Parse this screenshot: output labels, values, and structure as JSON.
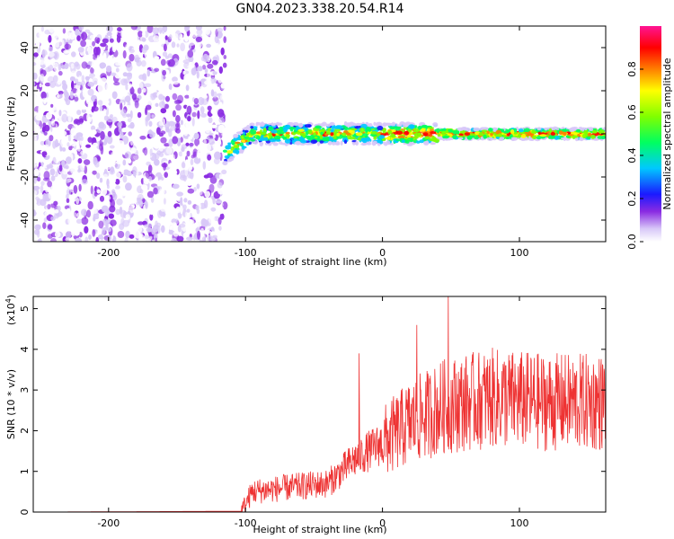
{
  "figure_title": "GN04.2023.338.20.54.R14",
  "chart_data": [
    {
      "type": "heatmap",
      "xlabel": "Height of straight line (km)",
      "ylabel": "Frequency (Hz)",
      "xlim": [
        -255,
        163
      ],
      "ylim": [
        -50,
        50
      ],
      "xticks": [
        -200,
        -100,
        0,
        100
      ],
      "yticks": [
        -40,
        -20,
        0,
        20,
        40
      ],
      "colorbar": {
        "label": "Normalized spectral amplitude",
        "range": [
          0.0,
          1.0
        ],
        "ticks": [
          "0.0",
          "0.2",
          "0.4",
          "0.6",
          "0.8"
        ],
        "colormap": "rainbow (white-purple-blue-cyan-green-yellow-red-magenta)"
      },
      "description_regions": [
        {
          "x_range": [
            -255,
            -115
          ],
          "freq_range": [
            -50,
            50
          ],
          "amplitude_range": [
            0.0,
            0.2
          ]
        },
        {
          "x_range": [
            -115,
            163
          ],
          "freq_center": 0,
          "freq_halfwidth": 4,
          "amplitude_range": [
            0.2,
            1.0
          ]
        }
      ]
    },
    {
      "type": "line",
      "xlabel": "Height of straight line (km)",
      "ylabel": "SNR (10 * v/v)",
      "y_scale_label": "(x10",
      "y_scale_exp": "4",
      "y_scale_close": ")",
      "xlim": [
        -255,
        163
      ],
      "ylim": [
        0,
        5.3
      ],
      "xticks": [
        -200,
        -100,
        0,
        100
      ],
      "yticks": [
        0,
        1,
        2,
        3,
        4,
        5
      ],
      "color": "#ee3333",
      "series_envelope": [
        {
          "x": -255,
          "y": 0.0
        },
        {
          "x": -103,
          "y": 0.02
        },
        {
          "x": -95,
          "y": 0.5
        },
        {
          "x": -70,
          "y": 0.6
        },
        {
          "x": -40,
          "y": 0.7
        },
        {
          "x": -20,
          "y": 1.3
        },
        {
          "x": 0,
          "y": 1.7
        },
        {
          "x": 20,
          "y": 2.2
        },
        {
          "x": 45,
          "y": 2.6
        },
        {
          "x": 80,
          "y": 2.8
        },
        {
          "x": 120,
          "y": 2.7
        },
        {
          "x": 163,
          "y": 2.7
        }
      ],
      "peaks": [
        {
          "x": -17,
          "y": 3.9
        },
        {
          "x": 25,
          "y": 4.6
        },
        {
          "x": 48,
          "y": 5.3
        },
        {
          "x": 90,
          "y": 3.6
        }
      ]
    }
  ]
}
